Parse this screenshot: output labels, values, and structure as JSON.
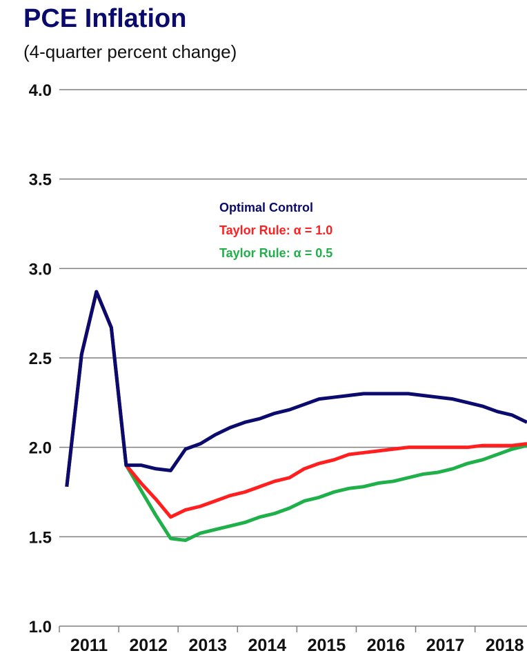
{
  "header": {
    "title": "PCE Inflation",
    "subtitle": "(4-quarter percent change)"
  },
  "chart_data": {
    "type": "line",
    "title": "PCE Inflation",
    "subtitle": "(4-quarter percent change)",
    "xlabel": "",
    "ylabel": "",
    "ylim": [
      1.0,
      4.0
    ],
    "xlim": [
      2011.0,
      2018.875
    ],
    "grid": true,
    "legend_position": "top-center",
    "y_ticks": [
      "4.0",
      "3.5",
      "3.0",
      "2.5",
      "2.0",
      "1.5",
      "1.0"
    ],
    "x_tick_labels": [
      "2011",
      "2012",
      "2013",
      "2014",
      "2015",
      "2016",
      "2017",
      "2018"
    ],
    "x_tick_values": [
      2011,
      2012,
      2013,
      2014,
      2015,
      2016,
      2017,
      2018
    ],
    "colors": {
      "optimal_control": "#0b0b6e",
      "taylor_alpha_1": "#ff1f1f",
      "taylor_alpha_05": "#1fb04a",
      "grid": "#7f7f7f",
      "title": "#0b0b6e"
    },
    "series": [
      {
        "name": "Optimal Control",
        "color": "#0b0b6e",
        "x": [
          2011.125,
          2011.375,
          2011.625,
          2011.875,
          2012.125,
          2012.375,
          2012.625,
          2012.875,
          2013.125,
          2013.375,
          2013.625,
          2013.875,
          2014.125,
          2014.375,
          2014.625,
          2014.875,
          2015.125,
          2015.375,
          2015.625,
          2015.875,
          2016.125,
          2016.375,
          2016.625,
          2016.875,
          2017.125,
          2017.375,
          2017.625,
          2017.875,
          2018.125,
          2018.375,
          2018.625,
          2018.875
        ],
        "y": [
          1.78,
          2.52,
          2.87,
          2.67,
          1.9,
          1.9,
          1.88,
          1.87,
          1.99,
          2.02,
          2.07,
          2.11,
          2.14,
          2.16,
          2.19,
          2.21,
          2.24,
          2.27,
          2.28,
          2.29,
          2.3,
          2.3,
          2.3,
          2.3,
          2.29,
          2.28,
          2.27,
          2.25,
          2.23,
          2.2,
          2.18,
          2.14
        ]
      },
      {
        "name": "Taylor Rule: α = 1.0",
        "color": "#ff1f1f",
        "x": [
          2011.125,
          2011.375,
          2011.625,
          2011.875,
          2012.125,
          2012.375,
          2012.625,
          2012.875,
          2013.125,
          2013.375,
          2013.625,
          2013.875,
          2014.125,
          2014.375,
          2014.625,
          2014.875,
          2015.125,
          2015.375,
          2015.625,
          2015.875,
          2016.125,
          2016.375,
          2016.625,
          2016.875,
          2017.125,
          2017.375,
          2017.625,
          2017.875,
          2018.125,
          2018.375,
          2018.625,
          2018.875
        ],
        "y": [
          1.78,
          2.52,
          2.87,
          2.67,
          1.9,
          1.8,
          1.71,
          1.61,
          1.65,
          1.67,
          1.7,
          1.73,
          1.75,
          1.78,
          1.81,
          1.83,
          1.88,
          1.91,
          1.93,
          1.96,
          1.97,
          1.98,
          1.99,
          2.0,
          2.0,
          2.0,
          2.0,
          2.0,
          2.01,
          2.01,
          2.01,
          2.02
        ]
      },
      {
        "name": "Taylor Rule: α = 0.5",
        "color": "#1fb04a",
        "x": [
          2011.125,
          2011.375,
          2011.625,
          2011.875,
          2012.125,
          2012.375,
          2012.625,
          2012.875,
          2013.125,
          2013.375,
          2013.625,
          2013.875,
          2014.125,
          2014.375,
          2014.625,
          2014.875,
          2015.125,
          2015.375,
          2015.625,
          2015.875,
          2016.125,
          2016.375,
          2016.625,
          2016.875,
          2017.125,
          2017.375,
          2017.625,
          2017.875,
          2018.125,
          2018.375,
          2018.625,
          2018.875
        ],
        "y": [
          1.78,
          2.52,
          2.87,
          2.67,
          1.9,
          1.76,
          1.62,
          1.49,
          1.48,
          1.52,
          1.54,
          1.56,
          1.58,
          1.61,
          1.63,
          1.66,
          1.7,
          1.72,
          1.75,
          1.77,
          1.78,
          1.8,
          1.81,
          1.83,
          1.85,
          1.86,
          1.88,
          1.91,
          1.93,
          1.96,
          1.99,
          2.01
        ]
      }
    ]
  },
  "legend": {
    "items": [
      {
        "label": "Optimal Control",
        "color": "#0b0b6e"
      },
      {
        "label": "Taylor Rule: α = 1.0",
        "color": "#ff1f1f"
      },
      {
        "label": "Taylor Rule: α = 0.5",
        "color": "#1fb04a"
      }
    ]
  }
}
